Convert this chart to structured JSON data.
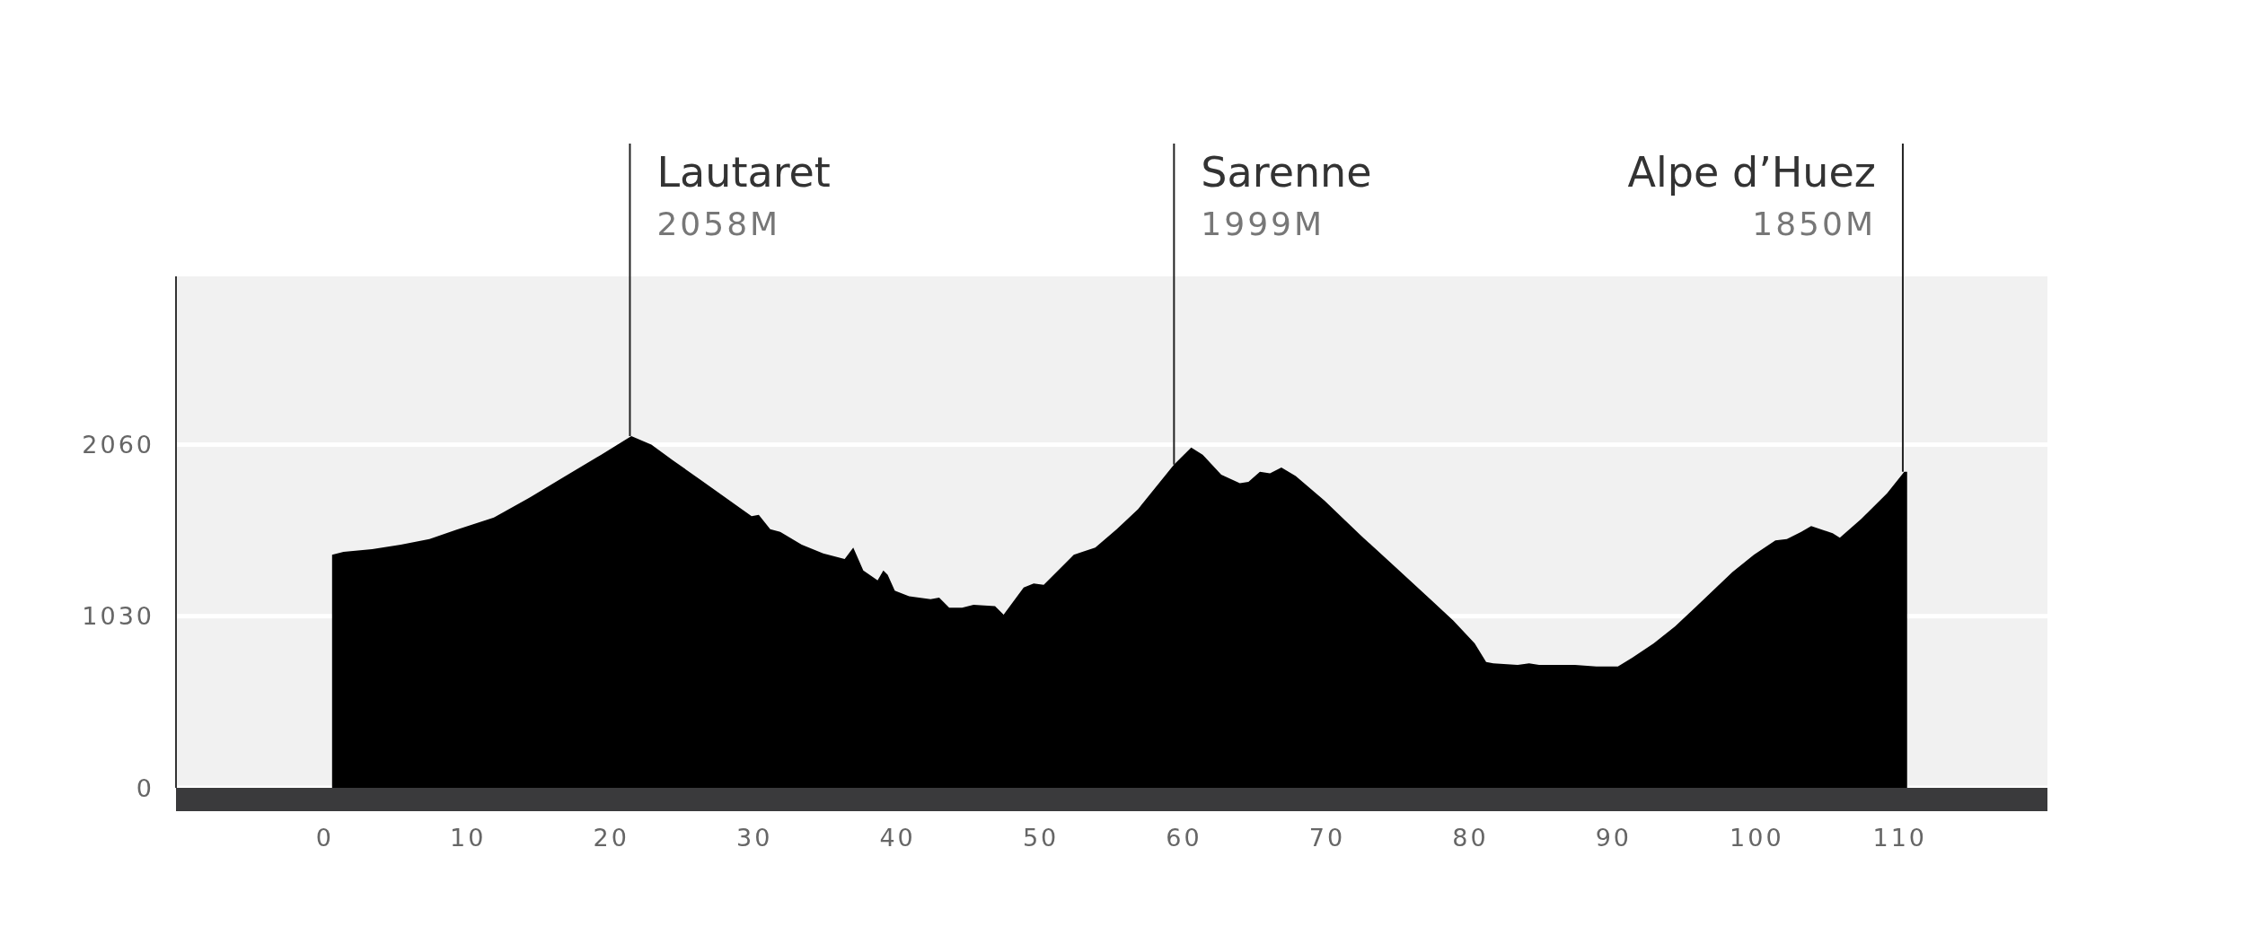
{
  "chart_data": {
    "type": "area",
    "x": [
      0.5,
      1.3,
      3.3,
      5.3,
      7.3,
      9.3,
      11.8,
      14.3,
      16.8,
      19.3,
      21.4,
      22.8,
      24.3,
      26.3,
      29.8,
      30.3,
      31.1,
      31.8,
      33.3,
      34.8,
      36.3,
      36.9,
      37.6,
      38.6,
      39.0,
      39.3,
      39.8,
      40.8,
      42.3,
      42.9,
      43.6,
      44.5,
      45.3,
      46.8,
      47.4,
      48.8,
      49.5,
      50.2,
      51.8,
      52.3,
      52.9,
      53.8,
      55.3,
      56.8,
      59.3,
      60.5,
      61.3,
      62.6,
      63.9,
      64.5,
      65.3,
      66.0,
      66.8,
      67.8,
      69.8,
      72.3,
      74.8,
      77.3,
      78.8,
      80.3,
      81.1,
      81.6,
      83.3,
      84.1,
      84.8,
      87.3,
      88.8,
      90.3,
      91.3,
      92.8,
      94.3,
      95.8,
      98.3,
      99.8,
      101.3,
      102.1,
      103.1,
      103.8,
      105.3,
      105.8,
      107.3,
      109.1,
      110.3,
      110.5
    ],
    "series": [
      {
        "color": "#000000",
        "values": [
          1399,
          1416,
          1433,
          1459,
          1493,
          1553,
          1622,
          1742,
          1871,
          2000,
          2111,
          2060,
          1966,
          1845,
          1631,
          1639,
          1553,
          1536,
          1459,
          1407,
          1373,
          1442,
          1305,
          1245,
          1305,
          1279,
          1184,
          1150,
          1133,
          1142,
          1081,
          1081,
          1099,
          1090,
          1039,
          1202,
          1227,
          1219,
          1356,
          1399,
          1416,
          1442,
          1553,
          1674,
          1940,
          2043,
          2000,
          1880,
          1828,
          1837,
          1897,
          1888,
          1923,
          1871,
          1725,
          1519,
          1322,
          1124,
          1004,
          867,
          755,
          747,
          738,
          747,
          738,
          738,
          729,
          729,
          781,
          867,
          970,
          1090,
          1296,
          1399,
          1485,
          1493,
          1536,
          1571,
          1528,
          1502,
          1614,
          1768,
          1897,
          1897
        ]
      }
    ],
    "xlim": [
      -10.4,
      120.3
    ],
    "xticks": [
      0,
      10,
      20,
      30,
      40,
      50,
      60,
      70,
      80,
      90,
      100,
      110
    ],
    "ylim": [
      0,
      3070
    ],
    "yticks": [
      0,
      1030,
      2060
    ],
    "grid": "y",
    "annotations": [
      {
        "text": "Lautaret",
        "x": 21.3,
        "y": 2111
      },
      "2058M",
      {
        "text": "Sarenne",
        "x": 59.3,
        "y": 1940
      },
      "1999M",
      {
        "text": "Alpe d’Huez",
        "x": 110.2,
        "y": 1897
      },
      "1850M"
    ]
  }
}
